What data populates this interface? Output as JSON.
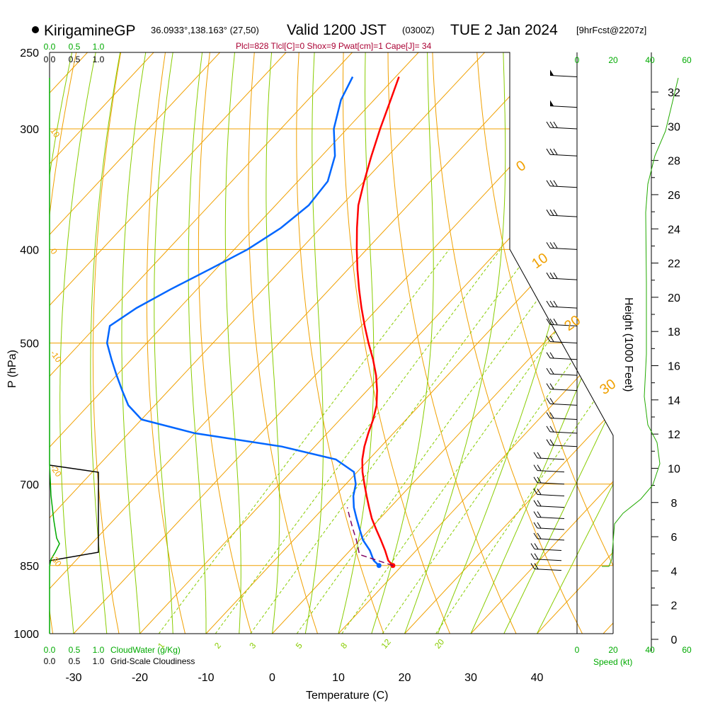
{
  "header": {
    "station": "KirigamineGP",
    "coords": "36.0933°,138.163° (27,50)",
    "valid": "Valid 1200 JST",
    "utc": "(0300Z)",
    "date": "TUE 2 Jan 2024",
    "forecast": "[9hrFcst@2207z]",
    "indices": "Plcl=828 Tlcl[C]=0 Shox=9 Pwat[cm]=1 Cape[J]= 34"
  },
  "axes": {
    "x_title": "Temperature (C)",
    "y_title": "P (hPa)",
    "height_title": "Height (1000 Feet)",
    "speed_title": "Speed (kt)",
    "cloud_water_title": "CloudWater (g/Kg)",
    "cloudiness_title": "Grid-Scale Cloudiness"
  },
  "colors": {
    "temperature": "#ff0000",
    "dewpoint": "#0066ff",
    "parcel": "#800060",
    "isotherm": "#f0a000",
    "dry_adiabat": "#f0a000",
    "moist_adiabat": "#88cc00",
    "mixing_ratio": "#88cc00",
    "green_text": "#00aa00",
    "indices": "#aa0033"
  },
  "chart_data": {
    "type": "line",
    "chart_kind": "skew-T log-P sounding",
    "xlim": [
      -35,
      50
    ],
    "pressure_range_hPa": [
      1000,
      250
    ],
    "y_scale": "log",
    "temperature_ticks": [
      "-30",
      "-20",
      "-10",
      "0",
      "10",
      "20",
      "30",
      "40"
    ],
    "pressure_ticks": [
      "250",
      "300",
      "400",
      "500",
      "700",
      "850",
      "1000"
    ],
    "height_ticks_kft": [
      "0",
      "2",
      "4",
      "6",
      "8",
      "10",
      "12",
      "14",
      "16",
      "18",
      "20",
      "22",
      "24",
      "26",
      "28",
      "30",
      "32"
    ],
    "speed_ticks_kt": [
      "0",
      "20",
      "40",
      "60"
    ],
    "cloud_scale_ticks": [
      "0.0",
      "0.5",
      "1.0"
    ],
    "dry_adiabat_labels": [
      "-10",
      "0",
      "10",
      "20",
      "30"
    ],
    "moist_adiabat_labels": [
      "0",
      "10",
      "20",
      "30"
    ],
    "mixing_ratio_labels": [
      "1",
      "2",
      "3",
      "5",
      "8",
      "12",
      "20"
    ],
    "series": [
      {
        "name": "temperature",
        "pressure_hPa": [
          850,
          840,
          820,
          800,
          780,
          760,
          740,
          720,
          700,
          680,
          660,
          640,
          620,
          600,
          580,
          560,
          540,
          520,
          500,
          480,
          460,
          440,
          420,
          400,
          380,
          360,
          340,
          320,
          300,
          280,
          265
        ],
        "temp_C": [
          8.6,
          7.2,
          5.3,
          3.2,
          1.0,
          -1.2,
          -3.2,
          -5.2,
          -7.2,
          -9.2,
          -11.0,
          -12.5,
          -13.8,
          -15.0,
          -16.5,
          -18.5,
          -20.8,
          -23.5,
          -26.5,
          -29.5,
          -32.5,
          -35.5,
          -38.5,
          -41.5,
          -44.5,
          -47.5,
          -50.0,
          -52.5,
          -55.0,
          -57.5,
          -59.5
        ]
      },
      {
        "name": "dewpoint",
        "pressure_hPa": [
          850,
          840,
          820,
          800,
          780,
          760,
          740,
          720,
          700,
          680,
          660,
          640,
          620,
          600,
          580,
          560,
          540,
          520,
          500,
          480,
          460,
          440,
          420,
          400,
          380,
          360,
          340,
          320,
          300,
          280,
          265
        ],
        "temp_C": [
          6.5,
          5.0,
          3.0,
          0.5,
          -1.5,
          -3.5,
          -5.5,
          -7.2,
          -8.5,
          -10.5,
          -15.0,
          -25.0,
          -40.0,
          -50.0,
          -54.0,
          -57.0,
          -60.0,
          -63.0,
          -66.0,
          -68.0,
          -66.5,
          -64.0,
          -61.0,
          -58.0,
          -56.0,
          -55.0,
          -55.5,
          -58.0,
          -62.0,
          -65.0,
          -66.5
        ]
      },
      {
        "name": "parcel",
        "pressure_hPa": [
          850,
          828,
          800,
          780,
          760,
          740
        ],
        "temp_C": [
          8.6,
          2.0,
          -0.5,
          -2.5,
          -4.5,
          -6.5
        ]
      }
    ],
    "wind_barbs_pressure_hPa": [
      265,
      285,
      300,
      320,
      345,
      370,
      400,
      430,
      460,
      480,
      500,
      520,
      540,
      560,
      580,
      600,
      620,
      640,
      660,
      680,
      700,
      720,
      740,
      760,
      780,
      800,
      820,
      840,
      860
    ]
  }
}
